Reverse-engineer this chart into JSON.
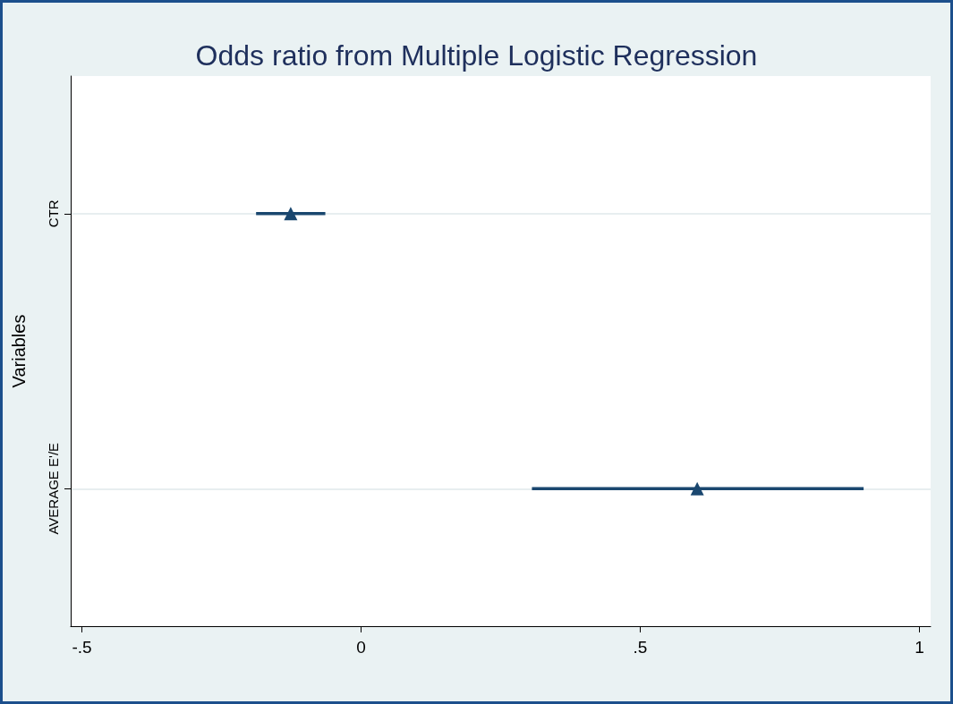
{
  "chart_data": {
    "type": "scatter",
    "title": "Odds ratio from Multiple Logistic Regression",
    "ylabel": "Variables",
    "orientation": "horizontal",
    "categories": [
      "CTR",
      "AVERAGE E'/E"
    ],
    "series": [
      {
        "color": "#1a476f",
        "values": [
          -0.126,
          0.602
        ],
        "errors": [
          [
            -0.188,
            -0.064
          ],
          [
            0.306,
            0.9
          ]
        ]
      }
    ],
    "xlim": [
      -0.52,
      1.02
    ],
    "xticks": [
      {
        "value": -0.5,
        "label": "-.5"
      },
      0,
      {
        "value": 0.5,
        "label": ".5"
      },
      1
    ],
    "grid": "y",
    "marker": "triangle"
  }
}
